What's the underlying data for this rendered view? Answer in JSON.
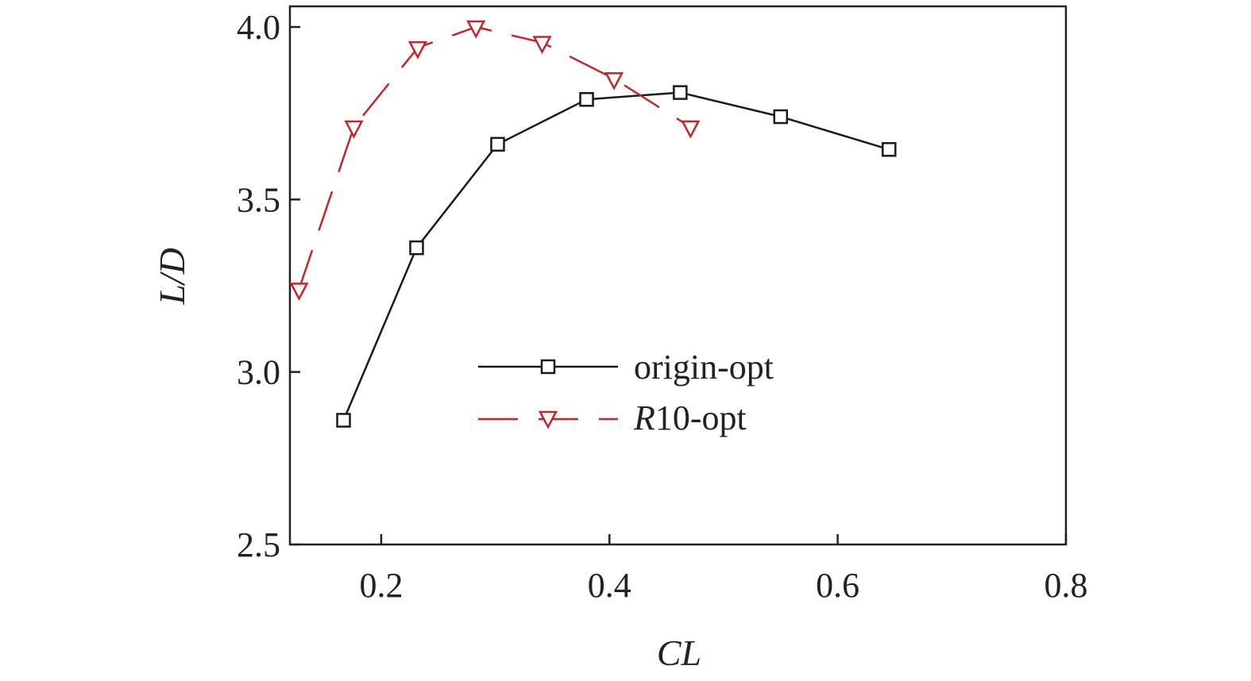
{
  "chart_data": {
    "type": "line",
    "xlabel": "CL",
    "ylabel": "L/D",
    "xlim": [
      0.12,
      0.8
    ],
    "ylim": [
      2.5,
      4.05
    ],
    "xticks": [
      0.2,
      0.4,
      0.6,
      0.8
    ],
    "xtick_labels": [
      "0.2",
      "0.4",
      "0.6",
      "0.8"
    ],
    "yticks": [
      2.5,
      3.0,
      3.5,
      4.0
    ],
    "ytick_labels": [
      "2.5",
      "3.0",
      "3.5",
      "4.0"
    ],
    "grid": false,
    "legend_position": "center",
    "series": [
      {
        "name": "origin-opt",
        "color": "#1a1a1a",
        "line_style": "solid",
        "marker": "square",
        "x": [
          0.167,
          0.231,
          0.302,
          0.38,
          0.462,
          0.55,
          0.645
        ],
        "y": [
          2.86,
          3.36,
          3.66,
          3.79,
          3.81,
          3.74,
          3.645
        ]
      },
      {
        "name": "R10-opt",
        "color": "#c0272d",
        "line_style": "dashed",
        "marker": "triangle-down",
        "x": [
          0.128,
          0.176,
          0.232,
          0.283,
          0.341,
          0.404,
          0.471
        ],
        "y": [
          3.24,
          3.71,
          3.94,
          4.0,
          3.955,
          3.85,
          3.71
        ]
      }
    ],
    "legend": {
      "entries": [
        {
          "series": "origin-opt",
          "label_prefix": "",
          "label_suffix": "origin-opt"
        },
        {
          "series": "R10-opt",
          "label_prefix": "R",
          "label_suffix": "10-opt"
        }
      ]
    }
  }
}
